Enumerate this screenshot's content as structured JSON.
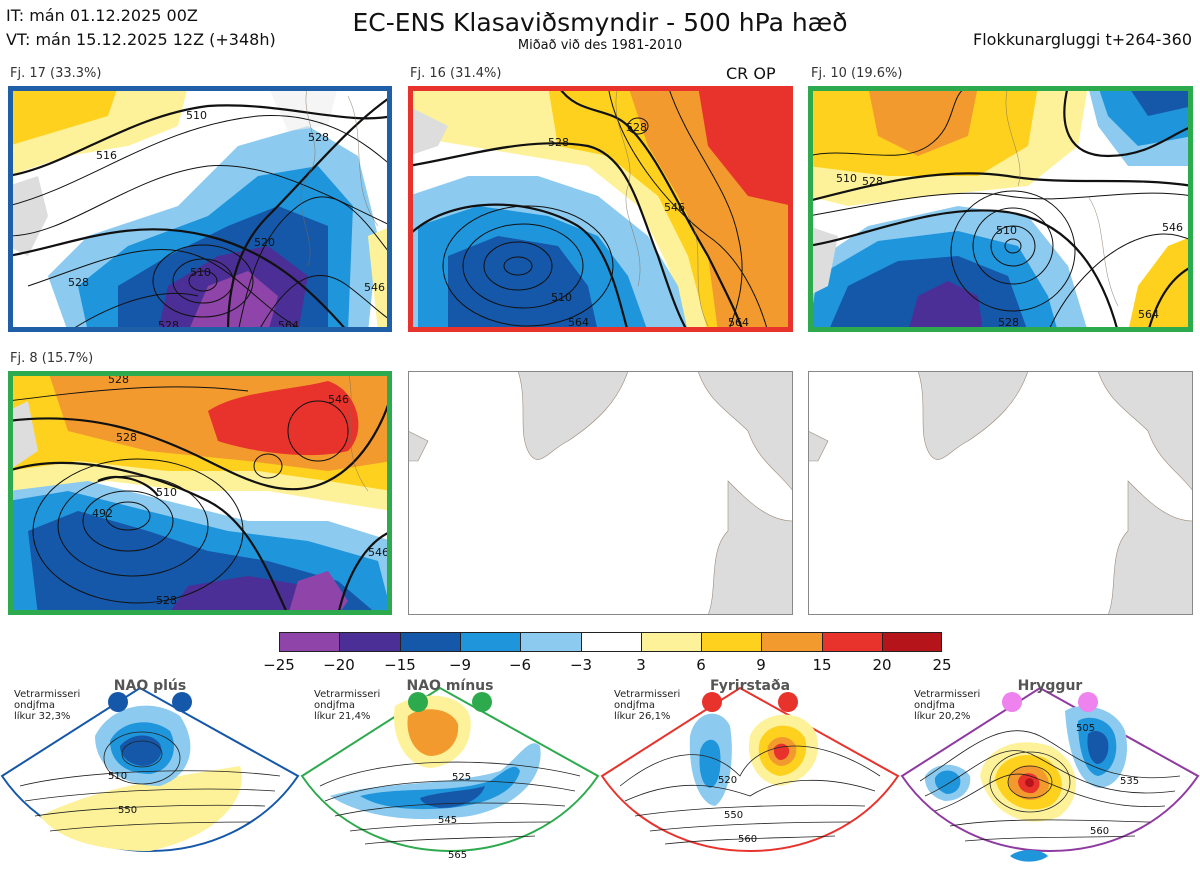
{
  "header": {
    "it_line": "IT: mán 01.12.2025 00Z",
    "vt_line": "VT: mán 15.12.2025 12Z  (+348h)",
    "title": "EC-ENS Klasaviðsmyndir - 500 hPa hæð",
    "subtitle": "Miðað við des 1981-2010",
    "window": "Flokkunargluggi t+264-360"
  },
  "panels": [
    {
      "label": "Fj. 17 (33.3%)",
      "border": "#1f5fa8",
      "extra": ""
    },
    {
      "label": "Fj. 16 (31.4%)",
      "border": "#e8322c",
      "extra": "CR OP"
    },
    {
      "label": "Fj. 10 (19.6%)",
      "border": "#2eaa4e",
      "extra": ""
    },
    {
      "label": "Fj. 8 (15.7%)",
      "border": "#2eaa4e",
      "extra": ""
    },
    {
      "label": "",
      "border": "#888888",
      "extra": ""
    },
    {
      "label": "",
      "border": "#888888",
      "extra": ""
    }
  ],
  "contour_labels": {
    "p1": [
      "510",
      "516",
      "528",
      "520",
      "528",
      "510",
      "546",
      "528",
      "564"
    ],
    "p2": [
      "528",
      "528",
      "546",
      "510",
      "564",
      "564"
    ],
    "p3": [
      "510",
      "528",
      "510",
      "546",
      "564",
      "528"
    ],
    "p4": [
      "528",
      "528",
      "546",
      "510",
      "492",
      "546",
      "528"
    ]
  },
  "colorbar": {
    "colors": [
      "#8e44a8",
      "#4b2f96",
      "#1557a8",
      "#1f95dc",
      "#8ccbef",
      "#ffffff",
      "#fdf29a",
      "#fdd11e",
      "#f39a2e",
      "#e8322c",
      "#b5141b"
    ],
    "ticks": [
      "−25",
      "−20",
      "−15",
      "−9",
      "−6",
      "−3",
      "3",
      "6",
      "9",
      "15",
      "20",
      "25"
    ]
  },
  "regimes": [
    {
      "name": "NAO plús",
      "text": [
        "Vetrarmisseri",
        "ondjfma",
        "líkur 32,3%"
      ],
      "color": "#1557a8",
      "labels": [
        "510",
        "550"
      ]
    },
    {
      "name": "NAO mínus",
      "text": [
        "Vetrarmisseri",
        "ondjfma",
        "líkur 21,4%"
      ],
      "color": "#2eaa4e",
      "labels": [
        "525",
        "545",
        "565"
      ]
    },
    {
      "name": "Fyrirstaða",
      "text": [
        "Vetrarmisseri",
        "ondjfma",
        "líkur 26,1%"
      ],
      "color": "#e8322c",
      "labels": [
        "520",
        "550",
        "560"
      ]
    },
    {
      "name": "Hryggur",
      "text": [
        "Vetrarmisseri",
        "ondjfma",
        "líkur 20,2%"
      ],
      "color": "#8e3aa0",
      "labels": [
        "505",
        "535",
        "560"
      ]
    }
  ]
}
